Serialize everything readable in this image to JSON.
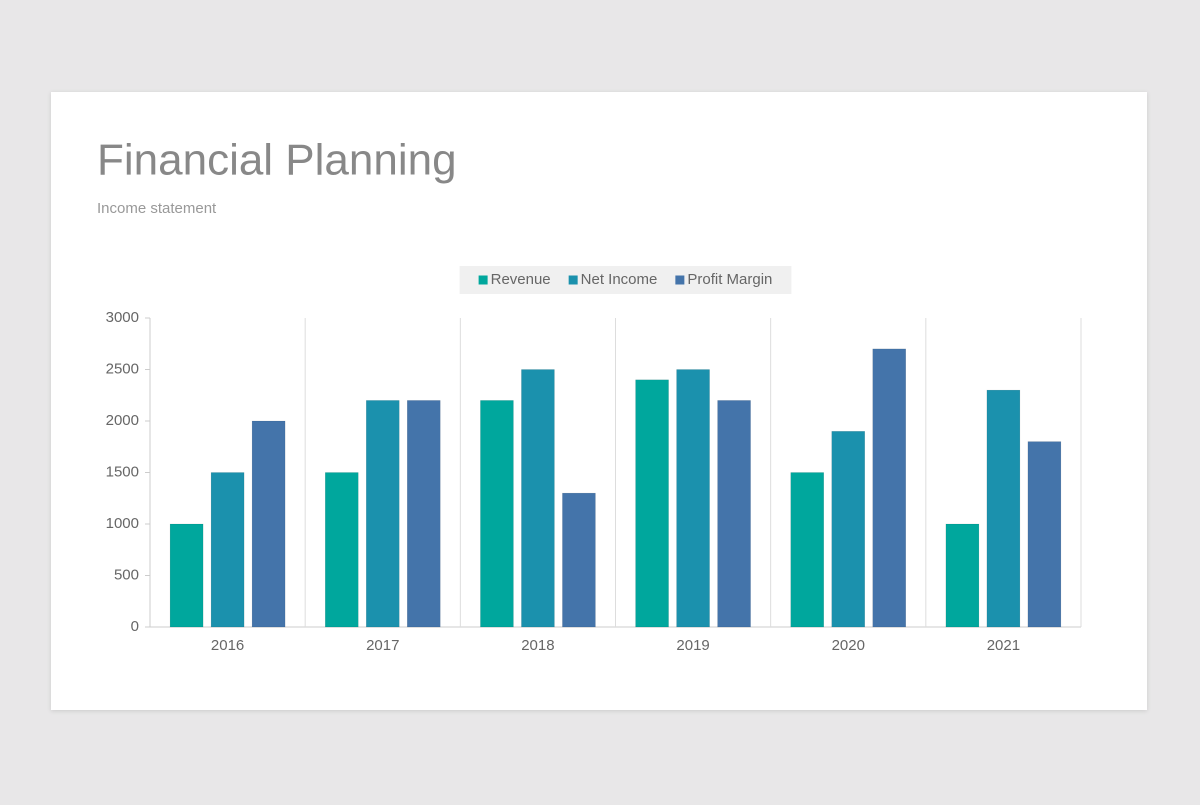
{
  "chart_data": {
    "type": "bar",
    "title": "Financial Planning",
    "subtitle": "Income statement",
    "categories": [
      "2016",
      "2017",
      "2018",
      "2019",
      "2020",
      "2021"
    ],
    "series": [
      {
        "name": "Revenue",
        "color": "#00a79d",
        "values": [
          1000,
          1500,
          2200,
          2400,
          1500,
          1000
        ]
      },
      {
        "name": "Net Income",
        "color": "#1b91ad",
        "values": [
          1500,
          2200,
          2500,
          2500,
          1900,
          2300
        ]
      },
      {
        "name": "Profit Margin",
        "color": "#4474aa",
        "values": [
          2000,
          2200,
          1300,
          2200,
          2700,
          1800
        ]
      }
    ],
    "ylim": [
      0,
      3000
    ],
    "yticks": [
      0,
      500,
      1000,
      1500,
      2000,
      2500,
      3000
    ],
    "grid": true,
    "legend": "top"
  }
}
